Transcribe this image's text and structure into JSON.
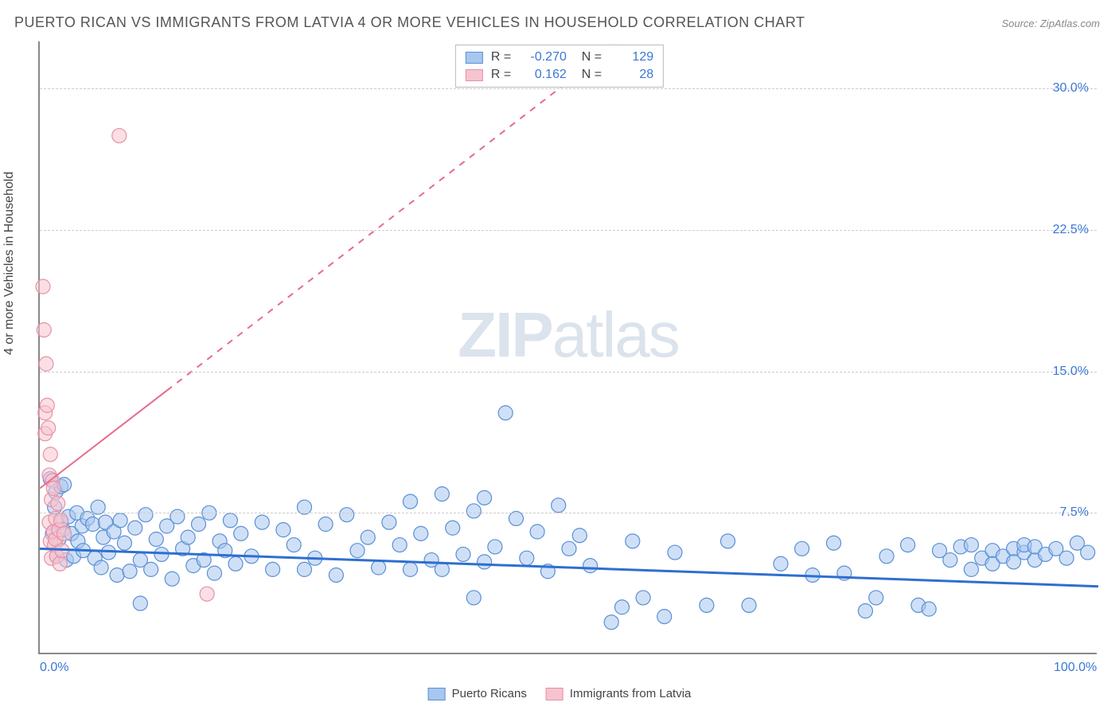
{
  "title": "PUERTO RICAN VS IMMIGRANTS FROM LATVIA 4 OR MORE VEHICLES IN HOUSEHOLD CORRELATION CHART",
  "source": "Source: ZipAtlas.com",
  "y_axis_title": "4 or more Vehicles in Household",
  "watermark_bold": "ZIP",
  "watermark_light": "atlas",
  "chart": {
    "type": "scatter",
    "xlim": [
      0,
      100
    ],
    "ylim": [
      0,
      32.5
    ],
    "x_ticks": [
      {
        "v": 0,
        "label": "0.0%"
      },
      {
        "v": 100,
        "label": "100.0%"
      }
    ],
    "y_ticks": [
      {
        "v": 7.5,
        "label": "7.5%"
      },
      {
        "v": 15.0,
        "label": "15.0%"
      },
      {
        "v": 22.5,
        "label": "22.5%"
      },
      {
        "v": 30.0,
        "label": "30.0%"
      }
    ],
    "grid_color": "#cccccc",
    "background_color": "#ffffff",
    "marker_radius": 9,
    "marker_opacity": 0.55,
    "series": [
      {
        "id": "blue",
        "name": "Puerto Ricans",
        "color_fill": "#a7c7ef",
        "color_stroke": "#5a8fd6",
        "R": "-0.270",
        "N": "129",
        "trend": {
          "x1": 0,
          "y1": 5.6,
          "x2": 100,
          "y2": 3.6,
          "solid_until_x": 100,
          "color": "#2e6fd0",
          "width": 3
        },
        "points": [
          [
            1,
            9.3
          ],
          [
            1.2,
            6.4
          ],
          [
            1.4,
            7.8
          ],
          [
            1.5,
            8.6
          ],
          [
            1.6,
            5.2
          ],
          [
            1.8,
            6.1
          ],
          [
            2,
            7.0
          ],
          [
            2,
            8.9
          ],
          [
            2.2,
            6.6
          ],
          [
            2.3,
            9.0
          ],
          [
            2.5,
            5.0
          ],
          [
            2.7,
            7.3
          ],
          [
            3,
            6.4
          ],
          [
            3.2,
            5.2
          ],
          [
            3.5,
            7.5
          ],
          [
            3.6,
            6.0
          ],
          [
            4,
            6.8
          ],
          [
            4.1,
            5.5
          ],
          [
            4.5,
            7.2
          ],
          [
            5,
            6.9
          ],
          [
            5.2,
            5.1
          ],
          [
            5.5,
            7.8
          ],
          [
            5.8,
            4.6
          ],
          [
            6,
            6.2
          ],
          [
            6.2,
            7.0
          ],
          [
            6.5,
            5.4
          ],
          [
            7,
            6.5
          ],
          [
            7.3,
            4.2
          ],
          [
            7.6,
            7.1
          ],
          [
            8,
            5.9
          ],
          [
            8.5,
            4.4
          ],
          [
            9,
            6.7
          ],
          [
            9.5,
            5.0
          ],
          [
            9.5,
            2.7
          ],
          [
            10,
            7.4
          ],
          [
            10.5,
            4.5
          ],
          [
            11,
            6.1
          ],
          [
            11.5,
            5.3
          ],
          [
            12,
            6.8
          ],
          [
            12.5,
            4.0
          ],
          [
            13,
            7.3
          ],
          [
            13.5,
            5.6
          ],
          [
            14,
            6.2
          ],
          [
            14.5,
            4.7
          ],
          [
            15,
            6.9
          ],
          [
            15.5,
            5.0
          ],
          [
            16,
            7.5
          ],
          [
            16.5,
            4.3
          ],
          [
            17,
            6.0
          ],
          [
            17.5,
            5.5
          ],
          [
            18,
            7.1
          ],
          [
            18.5,
            4.8
          ],
          [
            19,
            6.4
          ],
          [
            20,
            5.2
          ],
          [
            21,
            7.0
          ],
          [
            22,
            4.5
          ],
          [
            23,
            6.6
          ],
          [
            24,
            5.8
          ],
          [
            25,
            7.8
          ],
          [
            25,
            4.5
          ],
          [
            26,
            5.1
          ],
          [
            27,
            6.9
          ],
          [
            28,
            4.2
          ],
          [
            29,
            7.4
          ],
          [
            30,
            5.5
          ],
          [
            31,
            6.2
          ],
          [
            32,
            4.6
          ],
          [
            33,
            7.0
          ],
          [
            34,
            5.8
          ],
          [
            35,
            8.1
          ],
          [
            35,
            4.5
          ],
          [
            36,
            6.4
          ],
          [
            37,
            5.0
          ],
          [
            38,
            8.5
          ],
          [
            38,
            4.5
          ],
          [
            39,
            6.7
          ],
          [
            40,
            5.3
          ],
          [
            41,
            7.6
          ],
          [
            41,
            3.0
          ],
          [
            42,
            4.9
          ],
          [
            42,
            8.3
          ],
          [
            43,
            5.7
          ],
          [
            44,
            12.8
          ],
          [
            45,
            7.2
          ],
          [
            46,
            5.1
          ],
          [
            47,
            6.5
          ],
          [
            48,
            4.4
          ],
          [
            49,
            7.9
          ],
          [
            50,
            5.6
          ],
          [
            51,
            6.3
          ],
          [
            52,
            4.7
          ],
          [
            54,
            1.7
          ],
          [
            55,
            2.5
          ],
          [
            56,
            6.0
          ],
          [
            57,
            3.0
          ],
          [
            59,
            2.0
          ],
          [
            60,
            5.4
          ],
          [
            63,
            2.6
          ],
          [
            65,
            6.0
          ],
          [
            67,
            2.6
          ],
          [
            70,
            4.8
          ],
          [
            72,
            5.6
          ],
          [
            73,
            4.2
          ],
          [
            75,
            5.9
          ],
          [
            76,
            4.3
          ],
          [
            78,
            2.3
          ],
          [
            79,
            3.0
          ],
          [
            80,
            5.2
          ],
          [
            82,
            5.8
          ],
          [
            83,
            2.6
          ],
          [
            84,
            2.4
          ],
          [
            85,
            5.5
          ],
          [
            86,
            5.0
          ],
          [
            87,
            5.7
          ],
          [
            88,
            4.5
          ],
          [
            88,
            5.8
          ],
          [
            89,
            5.1
          ],
          [
            90,
            5.5
          ],
          [
            90,
            4.8
          ],
          [
            91,
            5.2
          ],
          [
            92,
            5.6
          ],
          [
            92,
            4.9
          ],
          [
            93,
            5.4
          ],
          [
            93,
            5.8
          ],
          [
            94,
            5.0
          ],
          [
            94,
            5.7
          ],
          [
            95,
            5.3
          ],
          [
            96,
            5.6
          ],
          [
            97,
            5.1
          ],
          [
            98,
            5.9
          ],
          [
            99,
            5.4
          ]
        ]
      },
      {
        "id": "pink",
        "name": "Immigrants from Latvia",
        "color_fill": "#f6c4cf",
        "color_stroke": "#e98fa6",
        "R": "0.162",
        "N": "28",
        "trend": {
          "x1": 0,
          "y1": 8.8,
          "x2": 100,
          "y2": 52.0,
          "solid_until_x": 12,
          "color": "#e76b8a",
          "width": 2
        },
        "points": [
          [
            0.3,
            19.5
          ],
          [
            0.4,
            17.2
          ],
          [
            0.5,
            12.8
          ],
          [
            0.5,
            11.7
          ],
          [
            0.6,
            15.4
          ],
          [
            0.7,
            13.2
          ],
          [
            0.8,
            12.0
          ],
          [
            0.9,
            9.5
          ],
          [
            0.9,
            7.0
          ],
          [
            1.0,
            10.6
          ],
          [
            1.0,
            6.0
          ],
          [
            1.1,
            8.2
          ],
          [
            1.1,
            5.1
          ],
          [
            1.2,
            9.2
          ],
          [
            1.3,
            6.5
          ],
          [
            1.3,
            8.8
          ],
          [
            1.4,
            5.8
          ],
          [
            1.5,
            7.2
          ],
          [
            1.5,
            6.1
          ],
          [
            1.6,
            5.2
          ],
          [
            1.7,
            8.0
          ],
          [
            1.8,
            6.6
          ],
          [
            1.9,
            4.8
          ],
          [
            2.0,
            7.1
          ],
          [
            2.1,
            5.5
          ],
          [
            2.3,
            6.4
          ],
          [
            7.5,
            27.5
          ],
          [
            15.8,
            3.2
          ]
        ]
      }
    ]
  },
  "legend": {
    "blue_fill": "#a7c7ef",
    "blue_stroke": "#5a8fd6",
    "pink_fill": "#f6c4cf",
    "pink_stroke": "#e98fa6"
  }
}
